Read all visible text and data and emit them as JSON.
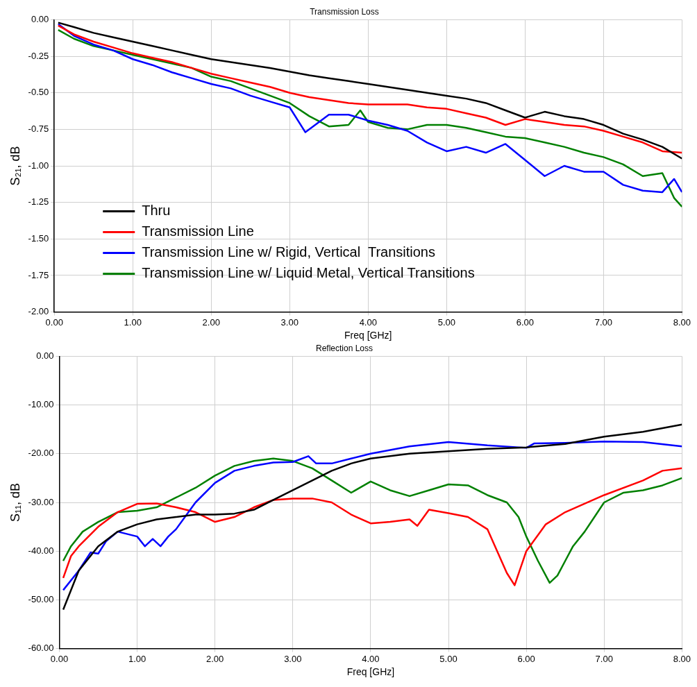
{
  "chart_data": [
    {
      "type": "line",
      "title": "Transmission Loss",
      "xlabel": "Freq [GHz]",
      "ylabel": "S₂₁, dB",
      "xlim": [
        0,
        8
      ],
      "ylim": [
        -2,
        0
      ],
      "xticks": [
        {
          "value": 0,
          "label": "0.00"
        },
        {
          "value": 1,
          "label": "1.00"
        },
        {
          "value": 2,
          "label": "2.00"
        },
        {
          "value": 3,
          "label": "3.00"
        },
        {
          "value": 4,
          "label": "4.00"
        },
        {
          "value": 5,
          "label": "5.00"
        },
        {
          "value": 6,
          "label": "6.00"
        },
        {
          "value": 7,
          "label": "7.00"
        },
        {
          "value": 8,
          "label": "8.00"
        }
      ],
      "yticks": [
        {
          "value": -2,
          "label": "-2.00"
        },
        {
          "value": -1.75,
          "label": "-1.75"
        },
        {
          "value": -1.5,
          "label": "-1.50"
        },
        {
          "value": -1.25,
          "label": "-1.25"
        },
        {
          "value": -1,
          "label": "-1.00"
        },
        {
          "value": -0.75,
          "label": "-0.75"
        },
        {
          "value": -0.5,
          "label": "-0.50"
        },
        {
          "value": -0.25,
          "label": "-0.25"
        },
        {
          "value": 0,
          "label": "0.00"
        }
      ],
      "grid": true,
      "legend": "bottom left",
      "line_style": "solid",
      "marker": "none",
      "series": [
        {
          "name": "Thru",
          "color": "#000000",
          "x": [
            0.05,
            0.25,
            0.5,
            0.75,
            1,
            1.25,
            1.5,
            1.75,
            2,
            2.25,
            2.5,
            2.75,
            3,
            3.25,
            3.5,
            3.75,
            4,
            4.25,
            4.5,
            4.75,
            5,
            5.25,
            5.5,
            5.75,
            6,
            6.25,
            6.5,
            6.75,
            7,
            7.25,
            7.5,
            7.75,
            8
          ],
          "values": [
            -0.02,
            -0.05,
            -0.09,
            -0.12,
            -0.15,
            -0.18,
            -0.21,
            -0.24,
            -0.27,
            -0.29,
            -0.31,
            -0.33,
            -0.355,
            -0.38,
            -0.4,
            -0.42,
            -0.44,
            -0.46,
            -0.48,
            -0.5,
            -0.52,
            -0.54,
            -0.57,
            -0.62,
            -0.67,
            -0.63,
            -0.66,
            -0.68,
            -0.72,
            -0.78,
            -0.82,
            -0.87,
            -0.95
          ]
        },
        {
          "name": "Transmission Line",
          "color": "#ff0000",
          "x": [
            0.05,
            0.25,
            0.5,
            0.75,
            1,
            1.25,
            1.5,
            1.75,
            2,
            2.25,
            2.5,
            2.75,
            3,
            3.25,
            3.5,
            3.75,
            4,
            4.25,
            4.5,
            4.75,
            5,
            5.25,
            5.5,
            5.75,
            6,
            6.25,
            6.5,
            6.75,
            7,
            7.25,
            7.5,
            7.75,
            8
          ],
          "values": [
            -0.04,
            -0.1,
            -0.15,
            -0.19,
            -0.23,
            -0.26,
            -0.29,
            -0.33,
            -0.37,
            -0.4,
            -0.43,
            -0.46,
            -0.5,
            -0.53,
            -0.55,
            -0.57,
            -0.58,
            -0.58,
            -0.58,
            -0.6,
            -0.61,
            -0.64,
            -0.67,
            -0.72,
            -0.68,
            -0.7,
            -0.72,
            -0.73,
            -0.76,
            -0.8,
            -0.84,
            -0.9,
            -0.91
          ]
        },
        {
          "name": "Transmission Line w/ Rigid, Vertical  Transitions",
          "color": "#0000ff",
          "x": [
            0.05,
            0.25,
            0.5,
            0.75,
            1,
            1.25,
            1.5,
            1.75,
            2,
            2.25,
            2.5,
            2.75,
            3,
            3.2,
            3.5,
            3.75,
            4,
            4.25,
            4.5,
            4.75,
            5,
            5.25,
            5.5,
            5.75,
            6,
            6.25,
            6.5,
            6.75,
            7,
            7.25,
            7.5,
            7.75,
            7.9,
            8
          ],
          "values": [
            -0.03,
            -0.11,
            -0.17,
            -0.21,
            -0.27,
            -0.31,
            -0.36,
            -0.4,
            -0.44,
            -0.47,
            -0.52,
            -0.56,
            -0.6,
            -0.77,
            -0.65,
            -0.65,
            -0.69,
            -0.72,
            -0.76,
            -0.84,
            -0.9,
            -0.87,
            -0.91,
            -0.85,
            -0.96,
            -1.07,
            -1,
            -1.04,
            -1.04,
            -1.13,
            -1.17,
            -1.18,
            -1.09,
            -1.18
          ]
        },
        {
          "name": "Transmission Line w/ Liquid Metal, Vertical Transitions",
          "color": "#008000",
          "x": [
            0.05,
            0.25,
            0.5,
            0.75,
            1,
            1.25,
            1.5,
            1.75,
            2,
            2.25,
            2.5,
            2.75,
            3,
            3.25,
            3.5,
            3.75,
            3.9,
            4,
            4.25,
            4.5,
            4.75,
            5,
            5.25,
            5.5,
            5.75,
            6,
            6.25,
            6.5,
            6.75,
            7,
            7.25,
            7.5,
            7.75,
            7.9,
            8
          ],
          "values": [
            -0.07,
            -0.13,
            -0.18,
            -0.21,
            -0.24,
            -0.27,
            -0.3,
            -0.33,
            -0.39,
            -0.42,
            -0.47,
            -0.52,
            -0.57,
            -0.66,
            -0.73,
            -0.72,
            -0.62,
            -0.7,
            -0.74,
            -0.75,
            -0.72,
            -0.72,
            -0.74,
            -0.77,
            -0.8,
            -0.81,
            -0.84,
            -0.87,
            -0.91,
            -0.94,
            -0.99,
            -1.07,
            -1.05,
            -1.22,
            -1.28
          ]
        }
      ]
    },
    {
      "type": "line",
      "title": "Reflection Loss",
      "xlabel": "Freq [GHz]",
      "ylabel": "S₁₁, dB",
      "xlim": [
        0,
        8
      ],
      "ylim": [
        -60,
        0
      ],
      "xticks": [
        {
          "value": 0,
          "label": "0.00"
        },
        {
          "value": 1,
          "label": "1.00"
        },
        {
          "value": 2,
          "label": "2.00"
        },
        {
          "value": 3,
          "label": "3.00"
        },
        {
          "value": 4,
          "label": "4.00"
        },
        {
          "value": 5,
          "label": "5.00"
        },
        {
          "value": 6,
          "label": "6.00"
        },
        {
          "value": 7,
          "label": "7.00"
        },
        {
          "value": 8,
          "label": "8.00"
        }
      ],
      "yticks": [
        {
          "value": -60,
          "label": "-60.00"
        },
        {
          "value": -50,
          "label": "-50.00"
        },
        {
          "value": -40,
          "label": "-40.00"
        },
        {
          "value": -30,
          "label": "-30.00"
        },
        {
          "value": -20,
          "label": "-20.00"
        },
        {
          "value": -10,
          "label": "-10.00"
        },
        {
          "value": 0,
          "label": "0.00"
        }
      ],
      "grid": true,
      "line_style": "solid",
      "marker": "none",
      "series": [
        {
          "color": "#000000",
          "x": [
            0.05,
            0.25,
            0.5,
            0.75,
            1,
            1.25,
            1.5,
            1.75,
            2,
            2.25,
            2.5,
            2.75,
            3,
            3.25,
            3.5,
            3.75,
            4,
            4.5,
            5,
            5.5,
            6,
            6.5,
            7,
            7.5,
            8
          ],
          "values": [
            -52,
            -44,
            -39,
            -36,
            -34.5,
            -33.5,
            -33,
            -32.5,
            -32.5,
            -32.3,
            -31.5,
            -29.5,
            -27.5,
            -25.5,
            -23.5,
            -22,
            -21,
            -20,
            -19.5,
            -19,
            -18.7,
            -18,
            -16.5,
            -15.5,
            -14
          ]
        },
        {
          "color": "#0000ff",
          "x": [
            0.05,
            0.25,
            0.4,
            0.5,
            0.6,
            0.75,
            1,
            1.1,
            1.2,
            1.3,
            1.4,
            1.5,
            1.75,
            2,
            2.25,
            2.5,
            2.75,
            3,
            3.2,
            3.3,
            3.5,
            3.75,
            4,
            4.5,
            5,
            5.5,
            6,
            6.1,
            6.5,
            7,
            7.5,
            8
          ],
          "values": [
            -48,
            -44,
            -40.3,
            -40.5,
            -38,
            -36,
            -37,
            -39,
            -37.5,
            -39,
            -37,
            -35.5,
            -30,
            -26,
            -23.5,
            -22.5,
            -21.8,
            -21.7,
            -20.5,
            -22,
            -22,
            -21,
            -20,
            -18.5,
            -17.6,
            -18.3,
            -18.8,
            -17.9,
            -17.8,
            -17.5,
            -17.6,
            -18.5
          ]
        },
        {
          "color": "#ff0000",
          "x": [
            0.05,
            0.15,
            0.25,
            0.5,
            0.75,
            1,
            1.25,
            1.5,
            1.75,
            2,
            2.25,
            2.5,
            2.75,
            3,
            3.25,
            3.5,
            3.75,
            4,
            4.25,
            4.5,
            4.6,
            4.75,
            5,
            5.25,
            5.5,
            5.75,
            5.85,
            6,
            6.25,
            6.5,
            7,
            7.5,
            7.75,
            8
          ],
          "values": [
            -45.5,
            -41,
            -39,
            -35,
            -32,
            -30.3,
            -30.2,
            -31,
            -32,
            -34,
            -33,
            -31,
            -29.5,
            -29.2,
            -29.2,
            -30,
            -32.5,
            -34.3,
            -34,
            -33.5,
            -34.8,
            -31.5,
            -32.2,
            -33,
            -35.5,
            -44.5,
            -47,
            -40,
            -34.5,
            -32,
            -28.5,
            -25.5,
            -23.5,
            -23
          ]
        },
        {
          "color": "#008000",
          "x": [
            0.05,
            0.15,
            0.3,
            0.5,
            0.75,
            1,
            1.25,
            1.5,
            1.75,
            2,
            2.25,
            2.5,
            2.75,
            3,
            3.25,
            3.5,
            3.75,
            4,
            4.25,
            4.5,
            4.75,
            5,
            5.25,
            5.5,
            5.75,
            5.9,
            6,
            6.15,
            6.3,
            6.4,
            6.5,
            6.6,
            6.75,
            7,
            7.25,
            7.5,
            7.75,
            8
          ],
          "values": [
            -42,
            -39,
            -36,
            -34,
            -32,
            -31.7,
            -31,
            -29,
            -27,
            -24.5,
            -22.5,
            -21.5,
            -21,
            -21.5,
            -23,
            -25.5,
            -28,
            -25.7,
            -27.5,
            -28.7,
            -27.5,
            -26.3,
            -26.5,
            -28.5,
            -30,
            -33,
            -37,
            -42,
            -46.5,
            -45,
            -42,
            -39,
            -36,
            -30,
            -28,
            -27.5,
            -26.5,
            -25
          ]
        }
      ]
    }
  ]
}
